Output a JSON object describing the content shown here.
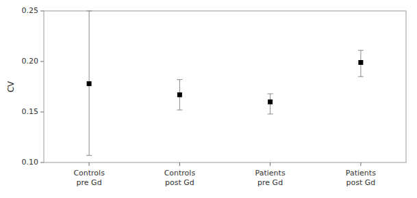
{
  "chart_data": {
    "type": "errorbar",
    "categories": [
      "Controls\npre Gd",
      "Controls\npost Gd",
      "Patients\npre Gd",
      "Patients\npost Gd"
    ],
    "values": [
      0.178,
      0.167,
      0.16,
      0.199
    ],
    "errors_low": [
      0.071,
      0.015,
      0.012,
      0.014
    ],
    "errors_high": [
      0.072,
      0.015,
      0.008,
      0.012
    ],
    "ylabel": "CV",
    "ylim": [
      0.1,
      0.25
    ],
    "yticks": [
      {
        "value": 0.1,
        "label": "0.10"
      },
      {
        "value": 0.15,
        "label": "0.15"
      },
      {
        "value": 0.2,
        "label": "0.20"
      },
      {
        "value": 0.25,
        "label": "0.25"
      }
    ],
    "color": "#000000",
    "marker": "square",
    "grid": false
  }
}
